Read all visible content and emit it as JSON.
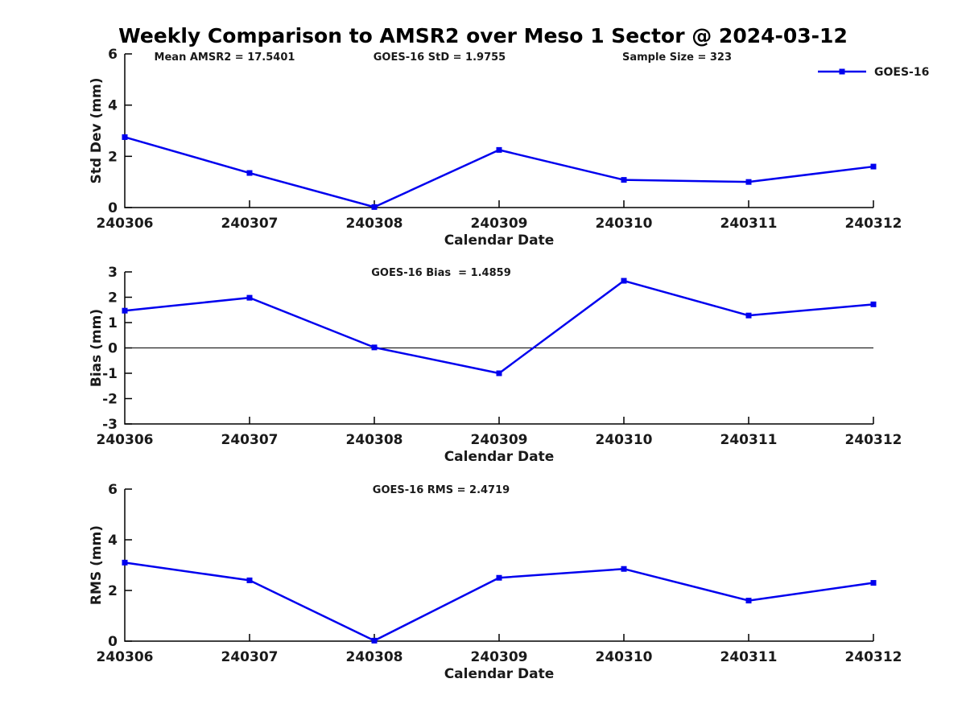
{
  "page": {
    "title": "Weekly Comparison to AMSR2 over Meso 1 Sector @ 2024-03-12"
  },
  "colors": {
    "line": "#0000EE",
    "axis": "#000000",
    "text": "#1a1a1a",
    "zero_line": "#000000",
    "background": "#FFFFFF"
  },
  "legend": {
    "label": "GOES-16",
    "position": "top-right"
  },
  "chart_data": [
    {
      "type": "line",
      "subplot": "std-dev",
      "annotations": [
        "Mean AMSR2 = 17.5401",
        "GOES-16 StD = 1.9755",
        "Sample Size = 323"
      ],
      "categories": [
        "240306",
        "240307",
        "240308",
        "240309",
        "240310",
        "240311",
        "240312"
      ],
      "series": [
        {
          "name": "GOES-16",
          "values": [
            2.75,
            1.35,
            0.02,
            2.25,
            1.08,
            1.0,
            1.6
          ]
        }
      ],
      "xlabel": "Calendar Date",
      "ylabel": "Std Dev (mm)",
      "ylim": [
        0,
        6
      ],
      "yticks": [
        0,
        2,
        4,
        6
      ],
      "zero_line": false,
      "grid": false,
      "legend_label": "GOES-16"
    },
    {
      "type": "line",
      "subplot": "bias",
      "annotations": [
        "GOES-16 Bias  = 1.4859"
      ],
      "categories": [
        "240306",
        "240307",
        "240308",
        "240309",
        "240310",
        "240311",
        "240312"
      ],
      "series": [
        {
          "name": "GOES-16",
          "values": [
            1.47,
            1.98,
            0.02,
            -1.0,
            2.65,
            1.28,
            1.72
          ]
        }
      ],
      "xlabel": "Calendar Date",
      "ylabel": "Bias (mm)",
      "ylim": [
        -3,
        3
      ],
      "yticks": [
        -3,
        -2,
        -1,
        0,
        1,
        2,
        3
      ],
      "zero_line": true,
      "grid": false
    },
    {
      "type": "line",
      "subplot": "rms",
      "annotations": [
        "GOES-16 RMS = 2.4719"
      ],
      "categories": [
        "240306",
        "240307",
        "240308",
        "240309",
        "240310",
        "240311",
        "240312"
      ],
      "series": [
        {
          "name": "GOES-16",
          "values": [
            3.1,
            2.4,
            0.02,
            2.5,
            2.85,
            1.6,
            2.3
          ]
        }
      ],
      "xlabel": "Calendar Date",
      "ylabel": "RMS (mm)",
      "ylim": [
        0,
        6
      ],
      "yticks": [
        0,
        2,
        4,
        6
      ],
      "zero_line": false,
      "grid": false
    }
  ]
}
